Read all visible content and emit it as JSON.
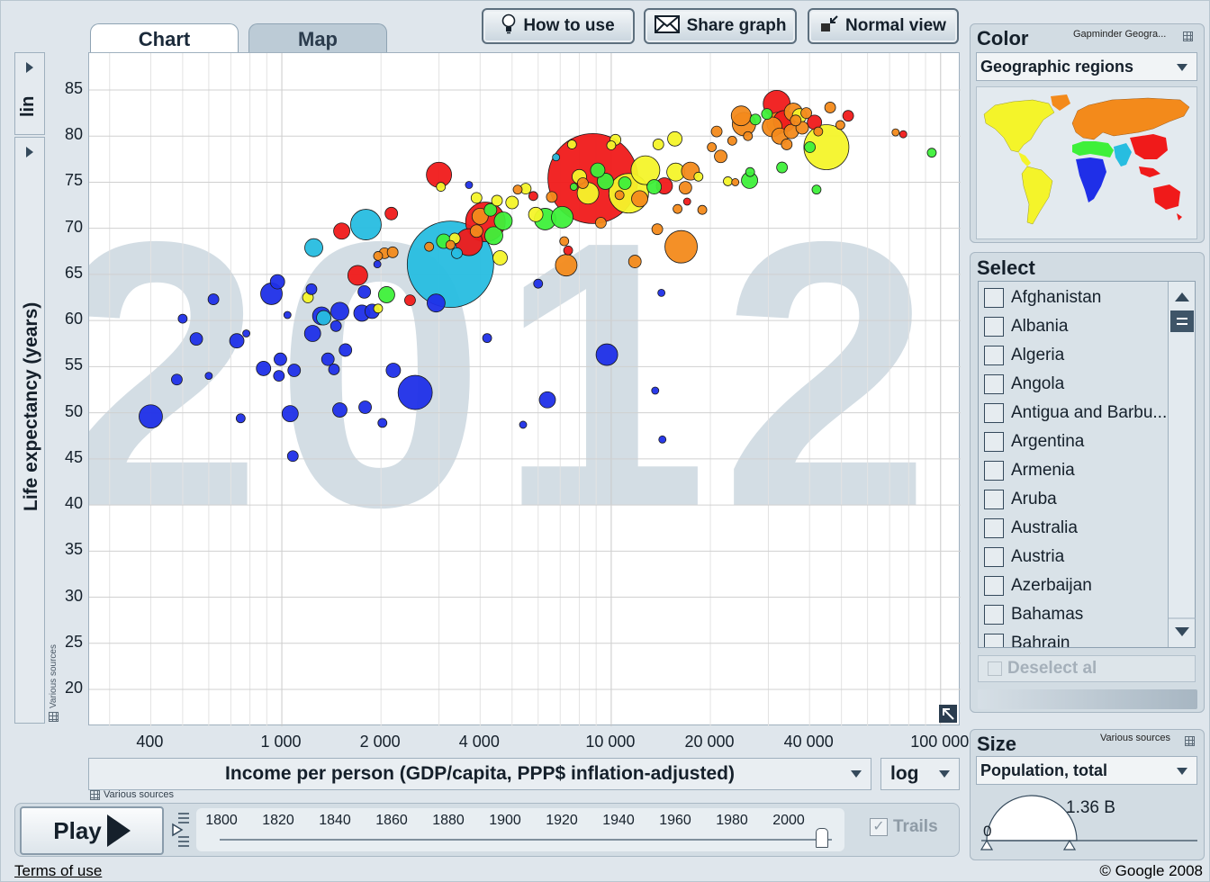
{
  "tabs": [
    {
      "label": "Chart",
      "active": true
    },
    {
      "label": "Map",
      "active": false
    }
  ],
  "toolbar": {
    "how_to_use": "How to use",
    "share_graph": "Share graph",
    "normal_view": "Normal view"
  },
  "y_axis": {
    "scale_label": "lin",
    "label": "Life expectancy (years)",
    "source": "Various sources"
  },
  "x_axis": {
    "label": "Income per person (GDP/capita, PPP$ inflation-adjusted)",
    "scale_label": "log",
    "source": "Various sources"
  },
  "chart_data": {
    "type": "scatter",
    "title": "",
    "background_year": "2012",
    "xlabel": "Income per person (GDP/capita, PPP$ inflation-adjusted)",
    "ylabel": "Life expectancy (years)",
    "xscale": "log",
    "xlim": [
      260,
      115000
    ],
    "ylim": [
      16,
      89
    ],
    "x_ticks": [
      400,
      1000,
      2000,
      4000,
      10000,
      20000,
      40000,
      100000
    ],
    "x_tick_labels": [
      "400",
      "1 000",
      "2 000",
      "4 000",
      "10 000",
      "20 000",
      "40 000",
      "100 000"
    ],
    "y_ticks": [
      20,
      25,
      30,
      35,
      40,
      45,
      50,
      55,
      60,
      65,
      70,
      75,
      80,
      85
    ],
    "grid": true,
    "color_by": "Geographic regions",
    "size_by": "Population, total",
    "region_colors": {
      "sub-saharan-africa": "#1f2fe8",
      "south-asia": "#27bde0",
      "middle-east-north-africa": "#3ef03a",
      "america": "#f4f42a",
      "europe-central-asia": "#f38a1b",
      "east-asia-pacific": "#f01a1a"
    },
    "points": [
      {
        "x": 400,
        "y": 49.6,
        "r": 13,
        "region": "sub-saharan-africa"
      },
      {
        "x": 480,
        "y": 53.6,
        "r": 6,
        "region": "sub-saharan-africa"
      },
      {
        "x": 500,
        "y": 60.2,
        "r": 5,
        "region": "sub-saharan-africa"
      },
      {
        "x": 550,
        "y": 58.0,
        "r": 7,
        "region": "sub-saharan-africa"
      },
      {
        "x": 600,
        "y": 54.0,
        "r": 4,
        "region": "sub-saharan-africa"
      },
      {
        "x": 620,
        "y": 62.3,
        "r": 6,
        "region": "sub-saharan-africa"
      },
      {
        "x": 730,
        "y": 57.8,
        "r": 8,
        "region": "sub-saharan-africa"
      },
      {
        "x": 750,
        "y": 49.4,
        "r": 5,
        "region": "sub-saharan-africa"
      },
      {
        "x": 780,
        "y": 58.6,
        "r": 4,
        "region": "sub-saharan-africa"
      },
      {
        "x": 880,
        "y": 54.8,
        "r": 8,
        "region": "sub-saharan-africa"
      },
      {
        "x": 930,
        "y": 62.9,
        "r": 12,
        "region": "sub-saharan-africa"
      },
      {
        "x": 970,
        "y": 64.2,
        "r": 8,
        "region": "sub-saharan-africa"
      },
      {
        "x": 980,
        "y": 54.0,
        "r": 6,
        "region": "sub-saharan-africa"
      },
      {
        "x": 990,
        "y": 55.8,
        "r": 7,
        "region": "sub-saharan-africa"
      },
      {
        "x": 1040,
        "y": 60.6,
        "r": 4,
        "region": "sub-saharan-africa"
      },
      {
        "x": 1060,
        "y": 49.9,
        "r": 9,
        "region": "sub-saharan-africa"
      },
      {
        "x": 1080,
        "y": 45.3,
        "r": 6,
        "region": "sub-saharan-africa"
      },
      {
        "x": 1090,
        "y": 54.6,
        "r": 7,
        "region": "sub-saharan-africa"
      },
      {
        "x": 1200,
        "y": 62.5,
        "r": 6,
        "region": "america"
      },
      {
        "x": 1230,
        "y": 63.4,
        "r": 6,
        "region": "sub-saharan-africa"
      },
      {
        "x": 1240,
        "y": 58.6,
        "r": 9,
        "region": "sub-saharan-africa"
      },
      {
        "x": 1250,
        "y": 67.9,
        "r": 10,
        "region": "south-asia"
      },
      {
        "x": 1320,
        "y": 60.5,
        "r": 10,
        "region": "sub-saharan-africa"
      },
      {
        "x": 1340,
        "y": 60.3,
        "r": 8,
        "region": "south-asia"
      },
      {
        "x": 1380,
        "y": 55.8,
        "r": 7,
        "region": "sub-saharan-africa"
      },
      {
        "x": 1440,
        "y": 54.7,
        "r": 6,
        "region": "sub-saharan-africa"
      },
      {
        "x": 1460,
        "y": 59.4,
        "r": 6,
        "region": "sub-saharan-africa"
      },
      {
        "x": 1500,
        "y": 61.0,
        "r": 10,
        "region": "sub-saharan-africa"
      },
      {
        "x": 1500,
        "y": 50.3,
        "r": 8,
        "region": "sub-saharan-africa"
      },
      {
        "x": 1520,
        "y": 69.7,
        "r": 9,
        "region": "east-asia-pacific"
      },
      {
        "x": 1560,
        "y": 56.8,
        "r": 7,
        "region": "sub-saharan-africa"
      },
      {
        "x": 1700,
        "y": 64.9,
        "r": 11,
        "region": "east-asia-pacific"
      },
      {
        "x": 1750,
        "y": 60.8,
        "r": 9,
        "region": "sub-saharan-africa"
      },
      {
        "x": 1780,
        "y": 63.1,
        "r": 7,
        "region": "sub-saharan-africa"
      },
      {
        "x": 1790,
        "y": 50.6,
        "r": 7,
        "region": "sub-saharan-africa"
      },
      {
        "x": 1800,
        "y": 70.4,
        "r": 17,
        "region": "south-asia"
      },
      {
        "x": 1880,
        "y": 61.0,
        "r": 8,
        "region": "sub-saharan-africa"
      },
      {
        "x": 1950,
        "y": 66.1,
        "r": 4,
        "region": "sub-saharan-africa"
      },
      {
        "x": 1960,
        "y": 67.0,
        "r": 5,
        "region": "europe-central-asia"
      },
      {
        "x": 1960,
        "y": 61.3,
        "r": 5,
        "region": "america"
      },
      {
        "x": 2020,
        "y": 48.9,
        "r": 5,
        "region": "sub-saharan-africa"
      },
      {
        "x": 2050,
        "y": 67.3,
        "r": 6,
        "region": "europe-central-asia"
      },
      {
        "x": 2080,
        "y": 62.8,
        "r": 9,
        "region": "middle-east-north-africa"
      },
      {
        "x": 2150,
        "y": 71.6,
        "r": 7,
        "region": "east-asia-pacific"
      },
      {
        "x": 2170,
        "y": 67.4,
        "r": 6,
        "region": "europe-central-asia"
      },
      {
        "x": 2180,
        "y": 54.6,
        "r": 8,
        "region": "sub-saharan-africa"
      },
      {
        "x": 2450,
        "y": 62.2,
        "r": 6,
        "region": "east-asia-pacific"
      },
      {
        "x": 2540,
        "y": 52.2,
        "r": 19,
        "region": "sub-saharan-africa"
      },
      {
        "x": 2800,
        "y": 68.0,
        "r": 5,
        "region": "europe-central-asia"
      },
      {
        "x": 2940,
        "y": 61.9,
        "r": 10,
        "region": "sub-saharan-africa"
      },
      {
        "x": 3000,
        "y": 75.8,
        "r": 14,
        "region": "east-asia-pacific"
      },
      {
        "x": 3040,
        "y": 74.5,
        "r": 5,
        "region": "america"
      },
      {
        "x": 3100,
        "y": 68.6,
        "r": 8,
        "region": "middle-east-north-africa"
      },
      {
        "x": 3250,
        "y": 66.1,
        "r": 48,
        "region": "south-asia"
      },
      {
        "x": 3250,
        "y": 68.2,
        "r": 5,
        "region": "europe-central-asia"
      },
      {
        "x": 3350,
        "y": 68.9,
        "r": 6,
        "region": "america"
      },
      {
        "x": 3400,
        "y": 67.3,
        "r": 6,
        "region": "south-asia"
      },
      {
        "x": 3700,
        "y": 74.7,
        "r": 4,
        "region": "sub-saharan-africa"
      },
      {
        "x": 3700,
        "y": 68.5,
        "r": 15,
        "region": "east-asia-pacific"
      },
      {
        "x": 3900,
        "y": 73.3,
        "r": 6,
        "region": "america"
      },
      {
        "x": 3900,
        "y": 69.7,
        "r": 7,
        "region": "europe-central-asia"
      },
      {
        "x": 4000,
        "y": 71.3,
        "r": 9,
        "region": "europe-central-asia"
      },
      {
        "x": 4150,
        "y": 70.7,
        "r": 22,
        "region": "east-asia-pacific"
      },
      {
        "x": 4200,
        "y": 58.1,
        "r": 5,
        "region": "sub-saharan-africa"
      },
      {
        "x": 4300,
        "y": 72.0,
        "r": 7,
        "region": "middle-east-north-africa"
      },
      {
        "x": 4400,
        "y": 69.2,
        "r": 10,
        "region": "middle-east-north-africa"
      },
      {
        "x": 4500,
        "y": 73.0,
        "r": 6,
        "region": "america"
      },
      {
        "x": 4600,
        "y": 66.8,
        "r": 8,
        "region": "america"
      },
      {
        "x": 4700,
        "y": 70.8,
        "r": 10,
        "region": "middle-east-north-africa"
      },
      {
        "x": 5000,
        "y": 72.8,
        "r": 7,
        "region": "america"
      },
      {
        "x": 5200,
        "y": 74.2,
        "r": 5,
        "region": "europe-central-asia"
      },
      {
        "x": 5400,
        "y": 48.7,
        "r": 4,
        "region": "sub-saharan-africa"
      },
      {
        "x": 5500,
        "y": 74.3,
        "r": 6,
        "region": "america"
      },
      {
        "x": 5800,
        "y": 73.5,
        "r": 5,
        "region": "east-asia-pacific"
      },
      {
        "x": 5900,
        "y": 71.5,
        "r": 8,
        "region": "america"
      },
      {
        "x": 6000,
        "y": 64.0,
        "r": 5,
        "region": "sub-saharan-africa"
      },
      {
        "x": 6300,
        "y": 71.0,
        "r": 12,
        "region": "middle-east-north-africa"
      },
      {
        "x": 6400,
        "y": 51.4,
        "r": 9,
        "region": "sub-saharan-africa"
      },
      {
        "x": 6600,
        "y": 73.4,
        "r": 6,
        "region": "europe-central-asia"
      },
      {
        "x": 6800,
        "y": 77.7,
        "r": 4,
        "region": "south-asia"
      },
      {
        "x": 7100,
        "y": 71.2,
        "r": 12,
        "region": "middle-east-north-africa"
      },
      {
        "x": 7200,
        "y": 68.6,
        "r": 5,
        "region": "europe-central-asia"
      },
      {
        "x": 7300,
        "y": 66.0,
        "r": 12,
        "region": "europe-central-asia"
      },
      {
        "x": 7400,
        "y": 67.6,
        "r": 5,
        "region": "east-asia-pacific"
      },
      {
        "x": 7600,
        "y": 79.1,
        "r": 5,
        "region": "america"
      },
      {
        "x": 7700,
        "y": 74.5,
        "r": 4,
        "region": "middle-east-north-africa"
      },
      {
        "x": 8000,
        "y": 75.6,
        "r": 8,
        "region": "america"
      },
      {
        "x": 8200,
        "y": 74.9,
        "r": 6,
        "region": "europe-central-asia"
      },
      {
        "x": 8500,
        "y": 73.8,
        "r": 12,
        "region": "america"
      },
      {
        "x": 8800,
        "y": 75.4,
        "r": 50,
        "region": "east-asia-pacific"
      },
      {
        "x": 9100,
        "y": 76.3,
        "r": 8,
        "region": "middle-east-north-africa"
      },
      {
        "x": 9300,
        "y": 70.6,
        "r": 6,
        "region": "europe-central-asia"
      },
      {
        "x": 9600,
        "y": 75.1,
        "r": 9,
        "region": "middle-east-north-africa"
      },
      {
        "x": 9700,
        "y": 56.3,
        "r": 12,
        "region": "sub-saharan-africa"
      },
      {
        "x": 10000,
        "y": 79.0,
        "r": 5,
        "region": "america"
      },
      {
        "x": 10300,
        "y": 79.6,
        "r": 6,
        "region": "america"
      },
      {
        "x": 10600,
        "y": 73.6,
        "r": 5,
        "region": "europe-central-asia"
      },
      {
        "x": 11000,
        "y": 74.9,
        "r": 7,
        "region": "middle-east-north-africa"
      },
      {
        "x": 11300,
        "y": 73.8,
        "r": 22,
        "region": "america"
      },
      {
        "x": 11800,
        "y": 66.4,
        "r": 7,
        "region": "europe-central-asia"
      },
      {
        "x": 12200,
        "y": 73.2,
        "r": 9,
        "region": "europe-central-asia"
      },
      {
        "x": 12700,
        "y": 76.3,
        "r": 16,
        "region": "america"
      },
      {
        "x": 13500,
        "y": 74.5,
        "r": 8,
        "region": "middle-east-north-africa"
      },
      {
        "x": 13600,
        "y": 52.4,
        "r": 4,
        "region": "sub-saharan-africa"
      },
      {
        "x": 13800,
        "y": 69.9,
        "r": 6,
        "region": "europe-central-asia"
      },
      {
        "x": 13900,
        "y": 79.1,
        "r": 6,
        "region": "america"
      },
      {
        "x": 14200,
        "y": 63.0,
        "r": 4,
        "region": "sub-saharan-africa"
      },
      {
        "x": 14300,
        "y": 47.1,
        "r": 4,
        "region": "sub-saharan-africa"
      },
      {
        "x": 14500,
        "y": 74.6,
        "r": 9,
        "region": "east-asia-pacific"
      },
      {
        "x": 15600,
        "y": 79.7,
        "r": 8,
        "region": "america"
      },
      {
        "x": 15700,
        "y": 76.1,
        "r": 10,
        "region": "america"
      },
      {
        "x": 15900,
        "y": 72.1,
        "r": 5,
        "region": "europe-central-asia"
      },
      {
        "x": 16300,
        "y": 68.0,
        "r": 18,
        "region": "europe-central-asia"
      },
      {
        "x": 16800,
        "y": 74.4,
        "r": 7,
        "region": "europe-central-asia"
      },
      {
        "x": 17000,
        "y": 72.9,
        "r": 4,
        "region": "east-asia-pacific"
      },
      {
        "x": 17400,
        "y": 76.2,
        "r": 10,
        "region": "europe-central-asia"
      },
      {
        "x": 18400,
        "y": 75.6,
        "r": 5,
        "region": "america"
      },
      {
        "x": 18900,
        "y": 72.0,
        "r": 5,
        "region": "europe-central-asia"
      },
      {
        "x": 20200,
        "y": 78.8,
        "r": 5,
        "region": "europe-central-asia"
      },
      {
        "x": 20900,
        "y": 80.5,
        "r": 6,
        "region": "europe-central-asia"
      },
      {
        "x": 21500,
        "y": 77.8,
        "r": 7,
        "region": "europe-central-asia"
      },
      {
        "x": 22600,
        "y": 75.1,
        "r": 5,
        "region": "america"
      },
      {
        "x": 23300,
        "y": 79.5,
        "r": 5,
        "region": "europe-central-asia"
      },
      {
        "x": 23800,
        "y": 75.0,
        "r": 4,
        "region": "europe-central-asia"
      },
      {
        "x": 24800,
        "y": 82.2,
        "r": 11,
        "region": "europe-central-asia"
      },
      {
        "x": 25300,
        "y": 81.3,
        "r": 13,
        "region": "europe-central-asia"
      },
      {
        "x": 26000,
        "y": 80.0,
        "r": 5,
        "region": "europe-central-asia"
      },
      {
        "x": 26300,
        "y": 75.2,
        "r": 9,
        "region": "middle-east-north-africa"
      },
      {
        "x": 26400,
        "y": 76.1,
        "r": 5,
        "region": "middle-east-north-africa"
      },
      {
        "x": 27400,
        "y": 81.8,
        "r": 6,
        "region": "middle-east-north-africa"
      },
      {
        "x": 29700,
        "y": 82.4,
        "r": 6,
        "region": "middle-east-north-africa"
      },
      {
        "x": 30800,
        "y": 81.0,
        "r": 11,
        "region": "europe-central-asia"
      },
      {
        "x": 31800,
        "y": 83.5,
        "r": 15,
        "region": "east-asia-pacific"
      },
      {
        "x": 32000,
        "y": 81.4,
        "r": 12,
        "region": "europe-central-asia"
      },
      {
        "x": 32500,
        "y": 80.0,
        "r": 9,
        "region": "europe-central-asia"
      },
      {
        "x": 33000,
        "y": 76.6,
        "r": 6,
        "region": "middle-east-north-africa"
      },
      {
        "x": 33500,
        "y": 81.6,
        "r": 12,
        "region": "east-asia-pacific"
      },
      {
        "x": 34100,
        "y": 79.1,
        "r": 6,
        "region": "europe-central-asia"
      },
      {
        "x": 35200,
        "y": 80.5,
        "r": 8,
        "region": "europe-central-asia"
      },
      {
        "x": 35700,
        "y": 82.6,
        "r": 10,
        "region": "europe-central-asia"
      },
      {
        "x": 36300,
        "y": 81.7,
        "r": 6,
        "region": "europe-central-asia"
      },
      {
        "x": 37300,
        "y": 82.2,
        "r": 8,
        "region": "america"
      },
      {
        "x": 38000,
        "y": 80.9,
        "r": 7,
        "region": "europe-central-asia"
      },
      {
        "x": 39100,
        "y": 82.5,
        "r": 6,
        "region": "europe-central-asia"
      },
      {
        "x": 40100,
        "y": 78.8,
        "r": 6,
        "region": "middle-east-north-africa"
      },
      {
        "x": 41400,
        "y": 81.5,
        "r": 8,
        "region": "east-asia-pacific"
      },
      {
        "x": 42000,
        "y": 74.2,
        "r": 5,
        "region": "middle-east-north-africa"
      },
      {
        "x": 42500,
        "y": 80.5,
        "r": 5,
        "region": "europe-central-asia"
      },
      {
        "x": 45000,
        "y": 78.8,
        "r": 25,
        "region": "america"
      },
      {
        "x": 46200,
        "y": 83.1,
        "r": 6,
        "region": "europe-central-asia"
      },
      {
        "x": 49600,
        "y": 81.2,
        "r": 5,
        "region": "europe-central-asia"
      },
      {
        "x": 52400,
        "y": 82.2,
        "r": 6,
        "region": "east-asia-pacific"
      },
      {
        "x": 73000,
        "y": 80.4,
        "r": 4,
        "region": "europe-central-asia"
      },
      {
        "x": 77000,
        "y": 80.2,
        "r": 4,
        "region": "east-asia-pacific"
      },
      {
        "x": 94000,
        "y": 78.2,
        "r": 5,
        "region": "middle-east-north-africa"
      }
    ]
  },
  "right_panel": {
    "color": {
      "title": "Color",
      "source_label": "Gapminder Geogra...",
      "selected": "Geographic regions"
    },
    "select": {
      "title": "Select",
      "countries": [
        "Afghanistan",
        "Albania",
        "Algeria",
        "Angola",
        "Antigua and Barbu...",
        "Argentina",
        "Armenia",
        "Aruba",
        "Australia",
        "Austria",
        "Azerbaijan",
        "Bahamas",
        "Bahrain"
      ],
      "deselect_label": "Deselect al"
    },
    "size": {
      "title": "Size",
      "source_label": "Various sources",
      "selected": "Population, total",
      "min_label": "0",
      "max_label": "1.36 B"
    }
  },
  "playback": {
    "play_label": "Play",
    "years": [
      "1800",
      "1820",
      "1840",
      "1860",
      "1880",
      "1900",
      "1920",
      "1940",
      "1960",
      "1980",
      "2000"
    ],
    "trails_label": "Trails",
    "trails_checked": true,
    "current_year": 2012
  },
  "footer": {
    "terms": "Terms of use",
    "copyright": "© Google 2008"
  }
}
